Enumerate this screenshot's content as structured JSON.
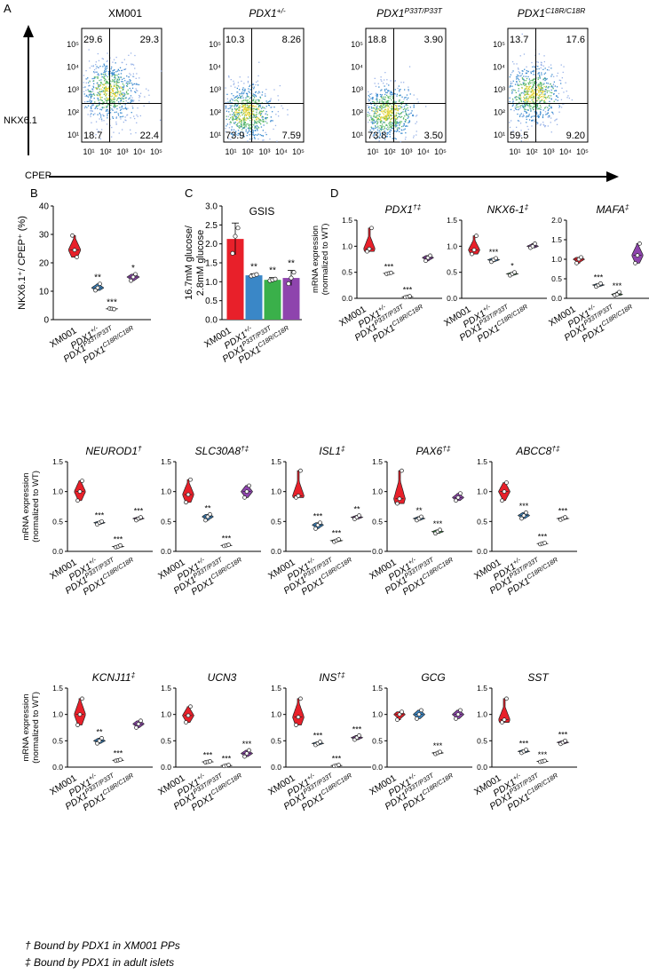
{
  "figure": {
    "panel_labels": {
      "A": "A",
      "B": "B",
      "C": "C",
      "D": "D"
    },
    "footnotes": [
      "† Bound by PDX1 in XM001 PPs",
      "‡ Bound by PDX1 in adult islets"
    ]
  },
  "colors": {
    "XM001": "#e8202a",
    "PDX1+/-": "#3a87c7",
    "PDX1P33T/P33T": "#3ab04a",
    "PDX1C18R/C18R": "#8e44ad"
  },
  "flow": {
    "ylabel": "NKX6.1",
    "xlabel": "CPEP",
    "tick_labels": [
      "10¹",
      "10²",
      "10³",
      "10⁴",
      "10⁵"
    ],
    "panels": [
      {
        "title": "XM001",
        "q": [
          "29.6",
          "29.3",
          "18.7",
          "22.4"
        ],
        "center": [
          -0.05,
          0.2
        ],
        "spread": 0.9
      },
      {
        "title": "PDX1",
        "sup": "+/-",
        "q": [
          "10.3",
          "8.26",
          "73.9",
          "7.59"
        ],
        "center": [
          -0.5,
          -0.55
        ],
        "spread": 0.8
      },
      {
        "title": "PDX1",
        "sup": "P33T/P33T",
        "q": [
          "18.8",
          "3.90",
          "73.8",
          "3.50"
        ],
        "center": [
          -0.7,
          -0.55
        ],
        "spread": 0.8
      },
      {
        "title": "PDX1",
        "sup": "C18R/C18R",
        "q": [
          "13.7",
          "17.6",
          "59.5",
          "9.20"
        ],
        "center": [
          -0.3,
          0.1
        ],
        "spread": 0.85
      }
    ]
  },
  "chart_data": [
    {
      "id": "B",
      "type": "violin",
      "ylabel": "NKX6.1⁺/ CPEP⁺ (%)",
      "ylim": [
        0,
        40
      ],
      "yticks": [
        0,
        10,
        20,
        30,
        40
      ],
      "categories": [
        "XM001",
        "PDX1+/-",
        "PDX1P33T/P33T",
        "PDX1C18R/C18R"
      ],
      "values": [
        [
          29.6,
          24.5,
          22.0
        ],
        [
          10.3,
          11.2,
          12.6
        ],
        [
          3.9,
          3.8,
          3.7
        ],
        [
          13.7,
          15.0,
          16.0
        ]
      ],
      "sig": [
        "",
        "**",
        "***",
        "*"
      ]
    },
    {
      "id": "C",
      "type": "bar",
      "title": "GSIS",
      "ylabel": "16.7mM glucose/ 2.8mM glucose",
      "ylim": [
        0,
        3.0
      ],
      "yticks": [
        0,
        0.5,
        1.0,
        1.5,
        2.0,
        2.5,
        3.0
      ],
      "categories": [
        "XM001",
        "PDX1+/-",
        "PDX1P33T/P33T",
        "PDX1C18R/C18R"
      ],
      "values": [
        2.13,
        1.17,
        1.05,
        1.1
      ],
      "errors": [
        0.42,
        0.04,
        0.06,
        0.2
      ],
      "points": [
        [
          1.75,
          2.2,
          2.42
        ],
        [
          1.15,
          1.17,
          1.19
        ],
        [
          1.03,
          1.05,
          1.07
        ],
        [
          0.95,
          1.1,
          1.25
        ]
      ],
      "sig": [
        "",
        "**",
        "**",
        "**"
      ]
    },
    {
      "id": "PDX1",
      "type": "violin",
      "title": "PDX1",
      "marks": "†‡",
      "ymax": 1.5,
      "yticks": [
        0,
        0.5,
        1.0,
        1.5
      ],
      "ylabel": "mRNA expression (normalized to WT)",
      "values": [
        [
          0.9,
          0.95,
          1.35
        ],
        [
          0.47,
          0.48,
          0.49
        ],
        [
          0.02,
          0.03,
          0.04
        ],
        [
          0.72,
          0.78,
          0.82
        ]
      ],
      "sig": [
        "",
        "***",
        "***",
        ""
      ]
    },
    {
      "id": "NKX6-1",
      "type": "violin",
      "title": "NKX6-1",
      "marks": "‡",
      "ymax": 1.5,
      "yticks": [
        0,
        0.5,
        1.0,
        1.5
      ],
      "ylabel": "",
      "values": [
        [
          0.85,
          0.93,
          1.2
        ],
        [
          0.7,
          0.74,
          0.77
        ],
        [
          0.44,
          0.47,
          0.5
        ],
        [
          0.97,
          1.0,
          1.05
        ]
      ],
      "sig": [
        "",
        "***",
        "*",
        ""
      ]
    },
    {
      "id": "MAFA",
      "type": "violin",
      "title": "MAFA",
      "marks": "‡",
      "ymax": 2.0,
      "yticks": [
        0,
        0.5,
        1.0,
        1.5,
        2.0
      ],
      "ylabel": "",
      "values": [
        [
          0.9,
          1.0,
          1.05
        ],
        [
          0.3,
          0.34,
          0.38
        ],
        [
          0.08,
          0.1,
          0.16
        ],
        [
          0.9,
          1.1,
          1.4
        ]
      ],
      "sig": [
        "",
        "***",
        "***",
        ""
      ]
    },
    {
      "id": "NEUROD1",
      "type": "violin",
      "title": "NEUROD1",
      "marks": "†",
      "ymax": 1.5,
      "yticks": [
        0,
        0.5,
        1.0,
        1.5
      ],
      "ylabel": "mRNA expression (normalized to WT)",
      "values": [
        [
          0.85,
          1.0,
          1.18
        ],
        [
          0.45,
          0.48,
          0.5
        ],
        [
          0.07,
          0.08,
          0.1
        ],
        [
          0.52,
          0.55,
          0.57
        ]
      ],
      "sig": [
        "",
        "***",
        "***",
        "***"
      ]
    },
    {
      "id": "SLC30A8",
      "type": "violin",
      "title": "SLC30A8",
      "marks": "†‡",
      "ymax": 1.5,
      "yticks": [
        0,
        0.5,
        1.0,
        1.5
      ],
      "ylabel": "",
      "values": [
        [
          0.82,
          0.95,
          1.2
        ],
        [
          0.52,
          0.58,
          0.62
        ],
        [
          0.09,
          0.1,
          0.11
        ],
        [
          0.9,
          1.0,
          1.1
        ]
      ],
      "sig": [
        "",
        "**",
        "***",
        ""
      ]
    },
    {
      "id": "ISL1",
      "type": "violin",
      "title": "ISL1",
      "marks": "‡",
      "ymax": 1.5,
      "yticks": [
        0,
        0.5,
        1.0,
        1.5
      ],
      "ylabel": "",
      "values": [
        [
          0.9,
          0.93,
          1.35
        ],
        [
          0.38,
          0.44,
          0.48
        ],
        [
          0.16,
          0.18,
          0.2
        ],
        [
          0.54,
          0.57,
          0.6
        ]
      ],
      "sig": [
        "",
        "***",
        "***",
        "**"
      ]
    },
    {
      "id": "PAX6",
      "type": "violin",
      "title": "PAX6",
      "marks": "†‡",
      "ymax": 1.5,
      "yticks": [
        0,
        0.5,
        1.0,
        1.5
      ],
      "ylabel": "",
      "values": [
        [
          0.8,
          0.88,
          1.35
        ],
        [
          0.52,
          0.55,
          0.58
        ],
        [
          0.3,
          0.33,
          0.36
        ],
        [
          0.85,
          0.9,
          0.97
        ]
      ],
      "sig": [
        "",
        "**",
        "***",
        ""
      ]
    },
    {
      "id": "ABCC8",
      "type": "violin",
      "title": "ABCC8",
      "marks": "†‡",
      "ymax": 1.5,
      "yticks": [
        0,
        0.5,
        1.0,
        1.5
      ],
      "ylabel": "",
      "values": [
        [
          0.85,
          1.0,
          1.15
        ],
        [
          0.55,
          0.6,
          0.65
        ],
        [
          0.12,
          0.13,
          0.14
        ],
        [
          0.53,
          0.55,
          0.57
        ]
      ],
      "sig": [
        "",
        "***",
        "***",
        "***"
      ]
    },
    {
      "id": "KCNJ11",
      "type": "violin",
      "title": "KCNJ11",
      "marks": "‡",
      "ymax": 1.5,
      "yticks": [
        0,
        0.5,
        1.0,
        1.5
      ],
      "ylabel": "mRNA expression (normalized to WT)",
      "values": [
        [
          0.8,
          1.0,
          1.3
        ],
        [
          0.45,
          0.5,
          0.55
        ],
        [
          0.12,
          0.13,
          0.14
        ],
        [
          0.75,
          0.82,
          0.88
        ]
      ],
      "sig": [
        "",
        "**",
        "***",
        ""
      ]
    },
    {
      "id": "UCN3",
      "type": "violin",
      "title": "UCN3",
      "marks": "",
      "ymax": 1.5,
      "yticks": [
        0,
        0.5,
        1.0,
        1.5
      ],
      "ylabel": "",
      "values": [
        [
          0.85,
          0.98,
          1.15
        ],
        [
          0.09,
          0.1,
          0.11
        ],
        [
          0.02,
          0.03,
          0.04
        ],
        [
          0.2,
          0.26,
          0.32
        ]
      ],
      "sig": [
        "",
        "***",
        "***",
        "***"
      ]
    },
    {
      "id": "INS",
      "type": "violin",
      "title": "INS",
      "marks": "†‡",
      "ymax": 1.5,
      "yticks": [
        0,
        0.5,
        1.0,
        1.5
      ],
      "ylabel": "",
      "values": [
        [
          0.8,
          0.95,
          1.3
        ],
        [
          0.42,
          0.45,
          0.48
        ],
        [
          0.02,
          0.03,
          0.04
        ],
        [
          0.52,
          0.56,
          0.6
        ]
      ],
      "sig": [
        "",
        "***",
        "***",
        "***"
      ]
    },
    {
      "id": "GCG",
      "type": "violin",
      "title": "GCG",
      "marks": "",
      "ymax": 1.5,
      "yticks": [
        0,
        0.5,
        1.0,
        1.5
      ],
      "ylabel": "",
      "values": [
        [
          0.9,
          1.0,
          1.05
        ],
        [
          0.92,
          1.0,
          1.08
        ],
        [
          0.25,
          0.27,
          0.29
        ],
        [
          0.92,
          1.0,
          1.08
        ]
      ],
      "sig": [
        "",
        "",
        "***",
        ""
      ]
    },
    {
      "id": "SST",
      "type": "violin",
      "title": "SST",
      "marks": "",
      "ymax": 1.5,
      "yticks": [
        0,
        0.5,
        1.0,
        1.5
      ],
      "ylabel": "",
      "values": [
        [
          0.85,
          0.9,
          1.3
        ],
        [
          0.27,
          0.3,
          0.33
        ],
        [
          0.1,
          0.11,
          0.12
        ],
        [
          0.44,
          0.47,
          0.5
        ]
      ],
      "sig": [
        "",
        "***",
        "***",
        "***"
      ]
    }
  ],
  "x_tick_labels": [
    {
      "base": "XM001",
      "sup": ""
    },
    {
      "base": "PDX1",
      "sup": "+/-"
    },
    {
      "base": "PDX1",
      "sup": "P33T/P33T"
    },
    {
      "base": "PDX1",
      "sup": "C18R/C18R"
    }
  ]
}
